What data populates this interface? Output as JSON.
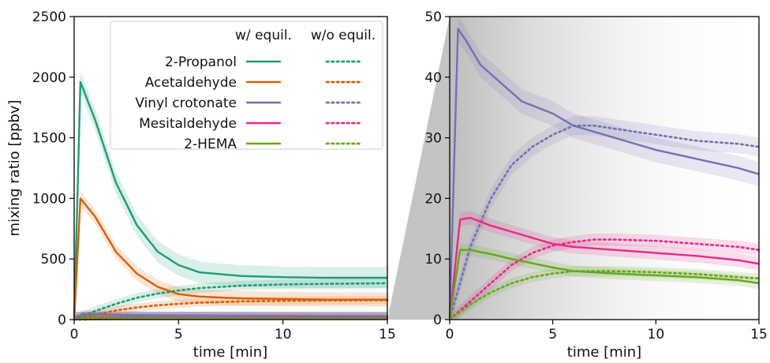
{
  "chart_data": [
    {
      "type": "line",
      "title": "",
      "xlabel": "time [min]",
      "ylabel": "mixing ratio [ppbv]",
      "xlim": [
        0,
        15
      ],
      "ylim": [
        0,
        2500
      ],
      "xticks": [
        0,
        5,
        10,
        15
      ],
      "yticks": [
        0,
        500,
        1000,
        1500,
        2000,
        2500
      ],
      "grid": false,
      "zoom_region": {
        "x": [
          0,
          15
        ],
        "y": [
          0,
          50
        ]
      },
      "legend": {
        "placement": "top-right",
        "column_headers": [
          "w/ equil.",
          "w/o equil."
        ],
        "entries": [
          "2-Propanol",
          "Acetaldehyde",
          "Vinyl crotonate",
          "Mesitaldehyde",
          "2-HEMA"
        ]
      },
      "series": [
        {
          "name": "2-Propanol",
          "variant": "w/ equil.",
          "color": "#1b9e77",
          "style": "solid",
          "x": [
            0,
            0.3,
            1,
            2,
            3,
            4,
            5,
            6,
            8,
            10,
            12,
            15
          ],
          "y": [
            0,
            1960,
            1650,
            1130,
            780,
            560,
            450,
            390,
            360,
            350,
            345,
            345
          ]
        },
        {
          "name": "2-Propanol",
          "variant": "w/o equil.",
          "color": "#1b9e77",
          "style": "dotted",
          "x": [
            0,
            1,
            2,
            3,
            4,
            5,
            6,
            8,
            10,
            12,
            15
          ],
          "y": [
            0,
            70,
            130,
            180,
            215,
            240,
            260,
            280,
            290,
            295,
            300
          ]
        },
        {
          "name": "Acetaldehyde",
          "variant": "w/ equil.",
          "color": "#d95f02",
          "style": "solid",
          "x": [
            0,
            0.3,
            1,
            2,
            3,
            4,
            5,
            6,
            8,
            10,
            12,
            15
          ],
          "y": [
            0,
            1000,
            850,
            560,
            380,
            270,
            210,
            190,
            175,
            170,
            165,
            165
          ]
        },
        {
          "name": "Acetaldehyde",
          "variant": "w/o equil.",
          "color": "#d95f02",
          "style": "dotted",
          "x": [
            0,
            1,
            2,
            3,
            4,
            5,
            6,
            8,
            10,
            12,
            15
          ],
          "y": [
            0,
            40,
            75,
            100,
            118,
            130,
            140,
            150,
            155,
            158,
            160
          ]
        },
        {
          "name": "Vinyl crotonate",
          "variant": "w/ equil.",
          "color": "#7570b3",
          "style": "solid",
          "x": [
            0,
            0.4,
            0.8,
            1.5,
            2.5,
            3.5,
            5,
            6,
            7,
            8,
            10,
            12,
            14,
            15
          ],
          "y": [
            0,
            48,
            46,
            42,
            39,
            36,
            34,
            32,
            31,
            30,
            28,
            26.5,
            25,
            24
          ]
        },
        {
          "name": "Vinyl crotonate",
          "variant": "w/o equil.",
          "color": "#7570b3",
          "style": "dotted",
          "x": [
            0,
            1,
            2,
            3,
            4,
            5,
            6,
            7,
            8,
            10,
            12,
            14,
            15
          ],
          "y": [
            0,
            12,
            20,
            25.5,
            28.5,
            30.5,
            32,
            32,
            31.5,
            30.5,
            29.5,
            29,
            28.5
          ]
        },
        {
          "name": "Mesitaldehyde",
          "variant": "w/ equil.",
          "color": "#e7298a",
          "style": "solid",
          "x": [
            0,
            0.5,
            1,
            2,
            3,
            4,
            5,
            6,
            8,
            10,
            12,
            14,
            15
          ],
          "y": [
            0,
            16.5,
            16.8,
            15.5,
            14.5,
            13.5,
            12.5,
            12,
            11.5,
            11,
            10.5,
            9.8,
            9.2
          ]
        },
        {
          "name": "Mesitaldehyde",
          "variant": "w/o equil.",
          "color": "#e7298a",
          "style": "dotted",
          "x": [
            0,
            1,
            2,
            3,
            4,
            5,
            6,
            7,
            8,
            10,
            12,
            14,
            15
          ],
          "y": [
            0,
            3,
            6,
            9,
            11,
            12.2,
            12.8,
            13.2,
            13.2,
            13,
            12.5,
            12,
            11.5
          ]
        },
        {
          "name": "2-HEMA",
          "variant": "w/ equil.",
          "color": "#66a61e",
          "style": "solid",
          "x": [
            0,
            0.5,
            1,
            2,
            3,
            4,
            5,
            6,
            8,
            10,
            12,
            14,
            15
          ],
          "y": [
            0,
            11.5,
            11.5,
            10.8,
            10,
            9.3,
            8.6,
            8,
            7.6,
            7.3,
            7,
            6.5,
            6
          ]
        },
        {
          "name": "2-HEMA",
          "variant": "w/o equil.",
          "color": "#66a61e",
          "style": "dotted",
          "x": [
            0,
            1,
            2,
            3,
            4,
            5,
            6,
            7,
            8,
            10,
            12,
            14,
            15
          ],
          "y": [
            0,
            2.5,
            4.5,
            6,
            7,
            7.6,
            8,
            8,
            8,
            7.8,
            7.5,
            7,
            6.8
          ]
        }
      ]
    },
    {
      "type": "line",
      "title": "",
      "xlabel": "time [min]",
      "ylabel": "",
      "xlim": [
        0,
        15
      ],
      "ylim": [
        0,
        50
      ],
      "xticks": [
        0,
        5,
        10,
        15
      ],
      "yticks": [
        0,
        10,
        20,
        30,
        40,
        50
      ],
      "grid": false
    }
  ]
}
